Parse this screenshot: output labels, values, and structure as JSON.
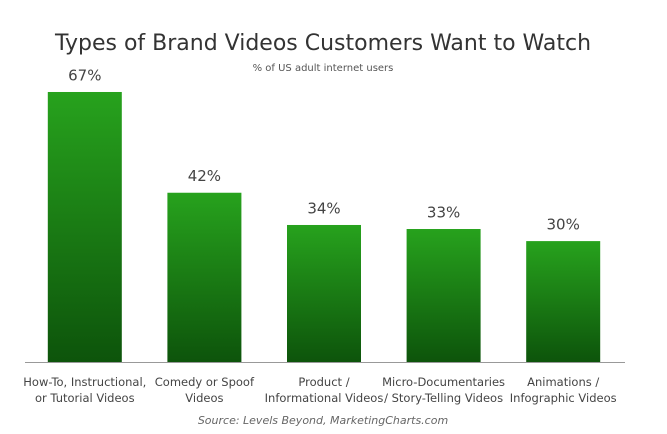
{
  "chart_data": {
    "type": "bar",
    "title": "Types of Brand Videos Customers Want to Watch",
    "subtitle": "% of US adult internet users",
    "categories": [
      "How-To, Instructional,\nor Tutorial Videos",
      "Comedy or Spoof\nVideos",
      "Product /\nInformational Videos",
      "Micro-Documentaries\n/ Story-Telling Videos",
      "Animations /\nInfographic Videos"
    ],
    "values": [
      67,
      42,
      34,
      33,
      30
    ],
    "value_labels": [
      "67%",
      "42%",
      "34%",
      "33%",
      "30%"
    ],
    "color": "#22921a",
    "source": "Source: Levels Beyond, MarketingCharts.com"
  }
}
